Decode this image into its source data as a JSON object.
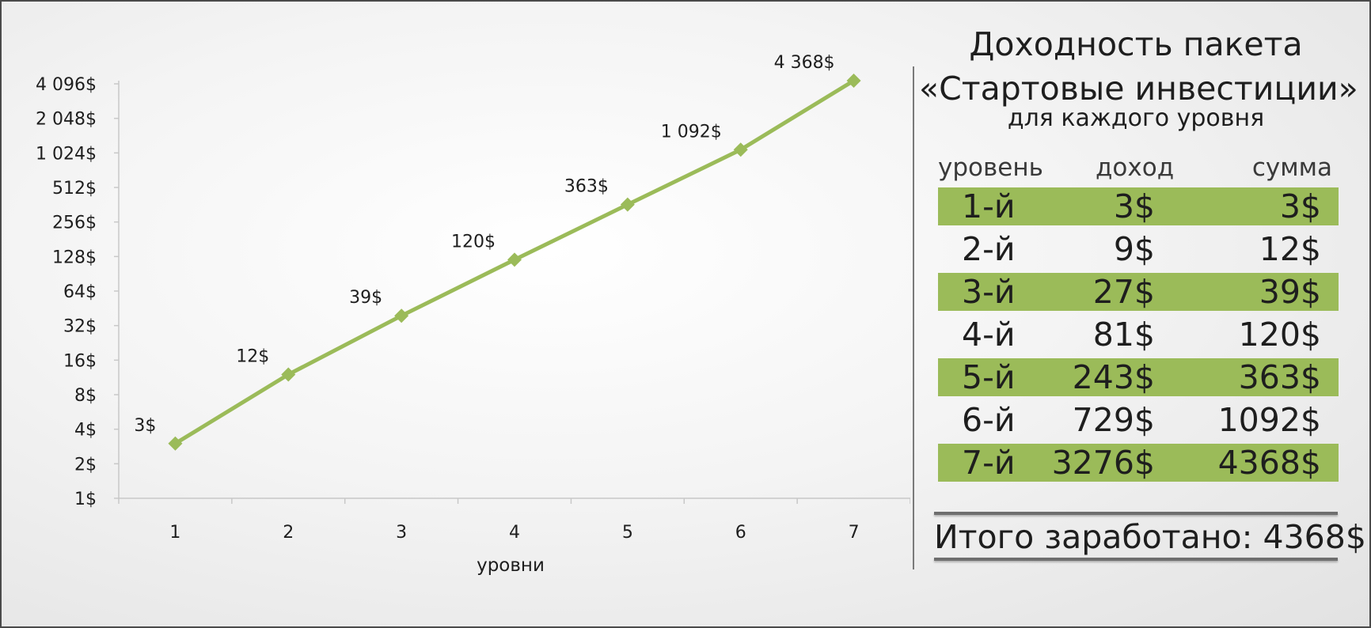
{
  "chart_data": {
    "type": "line",
    "x": [
      1,
      2,
      3,
      4,
      5,
      6,
      7
    ],
    "categories": [
      "1",
      "2",
      "3",
      "4",
      "5",
      "6",
      "7"
    ],
    "values": [
      3,
      12,
      39,
      120,
      363,
      1092,
      4368
    ],
    "data_labels": [
      "3$",
      "12$",
      "39$",
      "120$",
      "363$",
      "1 092$",
      "4 368$"
    ],
    "xlabel": "уровни",
    "ylabel": "",
    "y_scale": "log2",
    "ylim": [
      1,
      4096
    ],
    "y_ticks": [
      1,
      2,
      4,
      8,
      16,
      32,
      64,
      128,
      256,
      512,
      1024,
      2048,
      4096
    ],
    "y_tick_labels": [
      "1$",
      "2$",
      "4$",
      "8$",
      "16$",
      "32$",
      "64$",
      "128$",
      "256$",
      "512$",
      "1 024$",
      "2 048$",
      "4 096$"
    ],
    "grid": false,
    "legend": "none",
    "marker": "diamond",
    "series_color": "#9bbb59"
  },
  "panel": {
    "title_line1": "Доходность пакета",
    "title_line2": "«Стартовые инвестиции»",
    "title_line3": "для каждого уровня",
    "headers": {
      "level": "уровень",
      "income": "доход",
      "sum": "сумма"
    },
    "rows": [
      {
        "level": "1-й",
        "income": "3$",
        "sum": "3$"
      },
      {
        "level": "2-й",
        "income": "9$",
        "sum": "12$"
      },
      {
        "level": "3-й",
        "income": "27$",
        "sum": "39$"
      },
      {
        "level": "4-й",
        "income": "81$",
        "sum": "120$"
      },
      {
        "level": "5-й",
        "income": "243$",
        "sum": "363$"
      },
      {
        "level": "6-й",
        "income": "729$",
        "sum": "1092$"
      },
      {
        "level": "7-й",
        "income": "3276$",
        "sum": "4368$"
      }
    ],
    "total": "Итого заработано: 4368$",
    "row_highlight_color": "#9bbb59"
  }
}
